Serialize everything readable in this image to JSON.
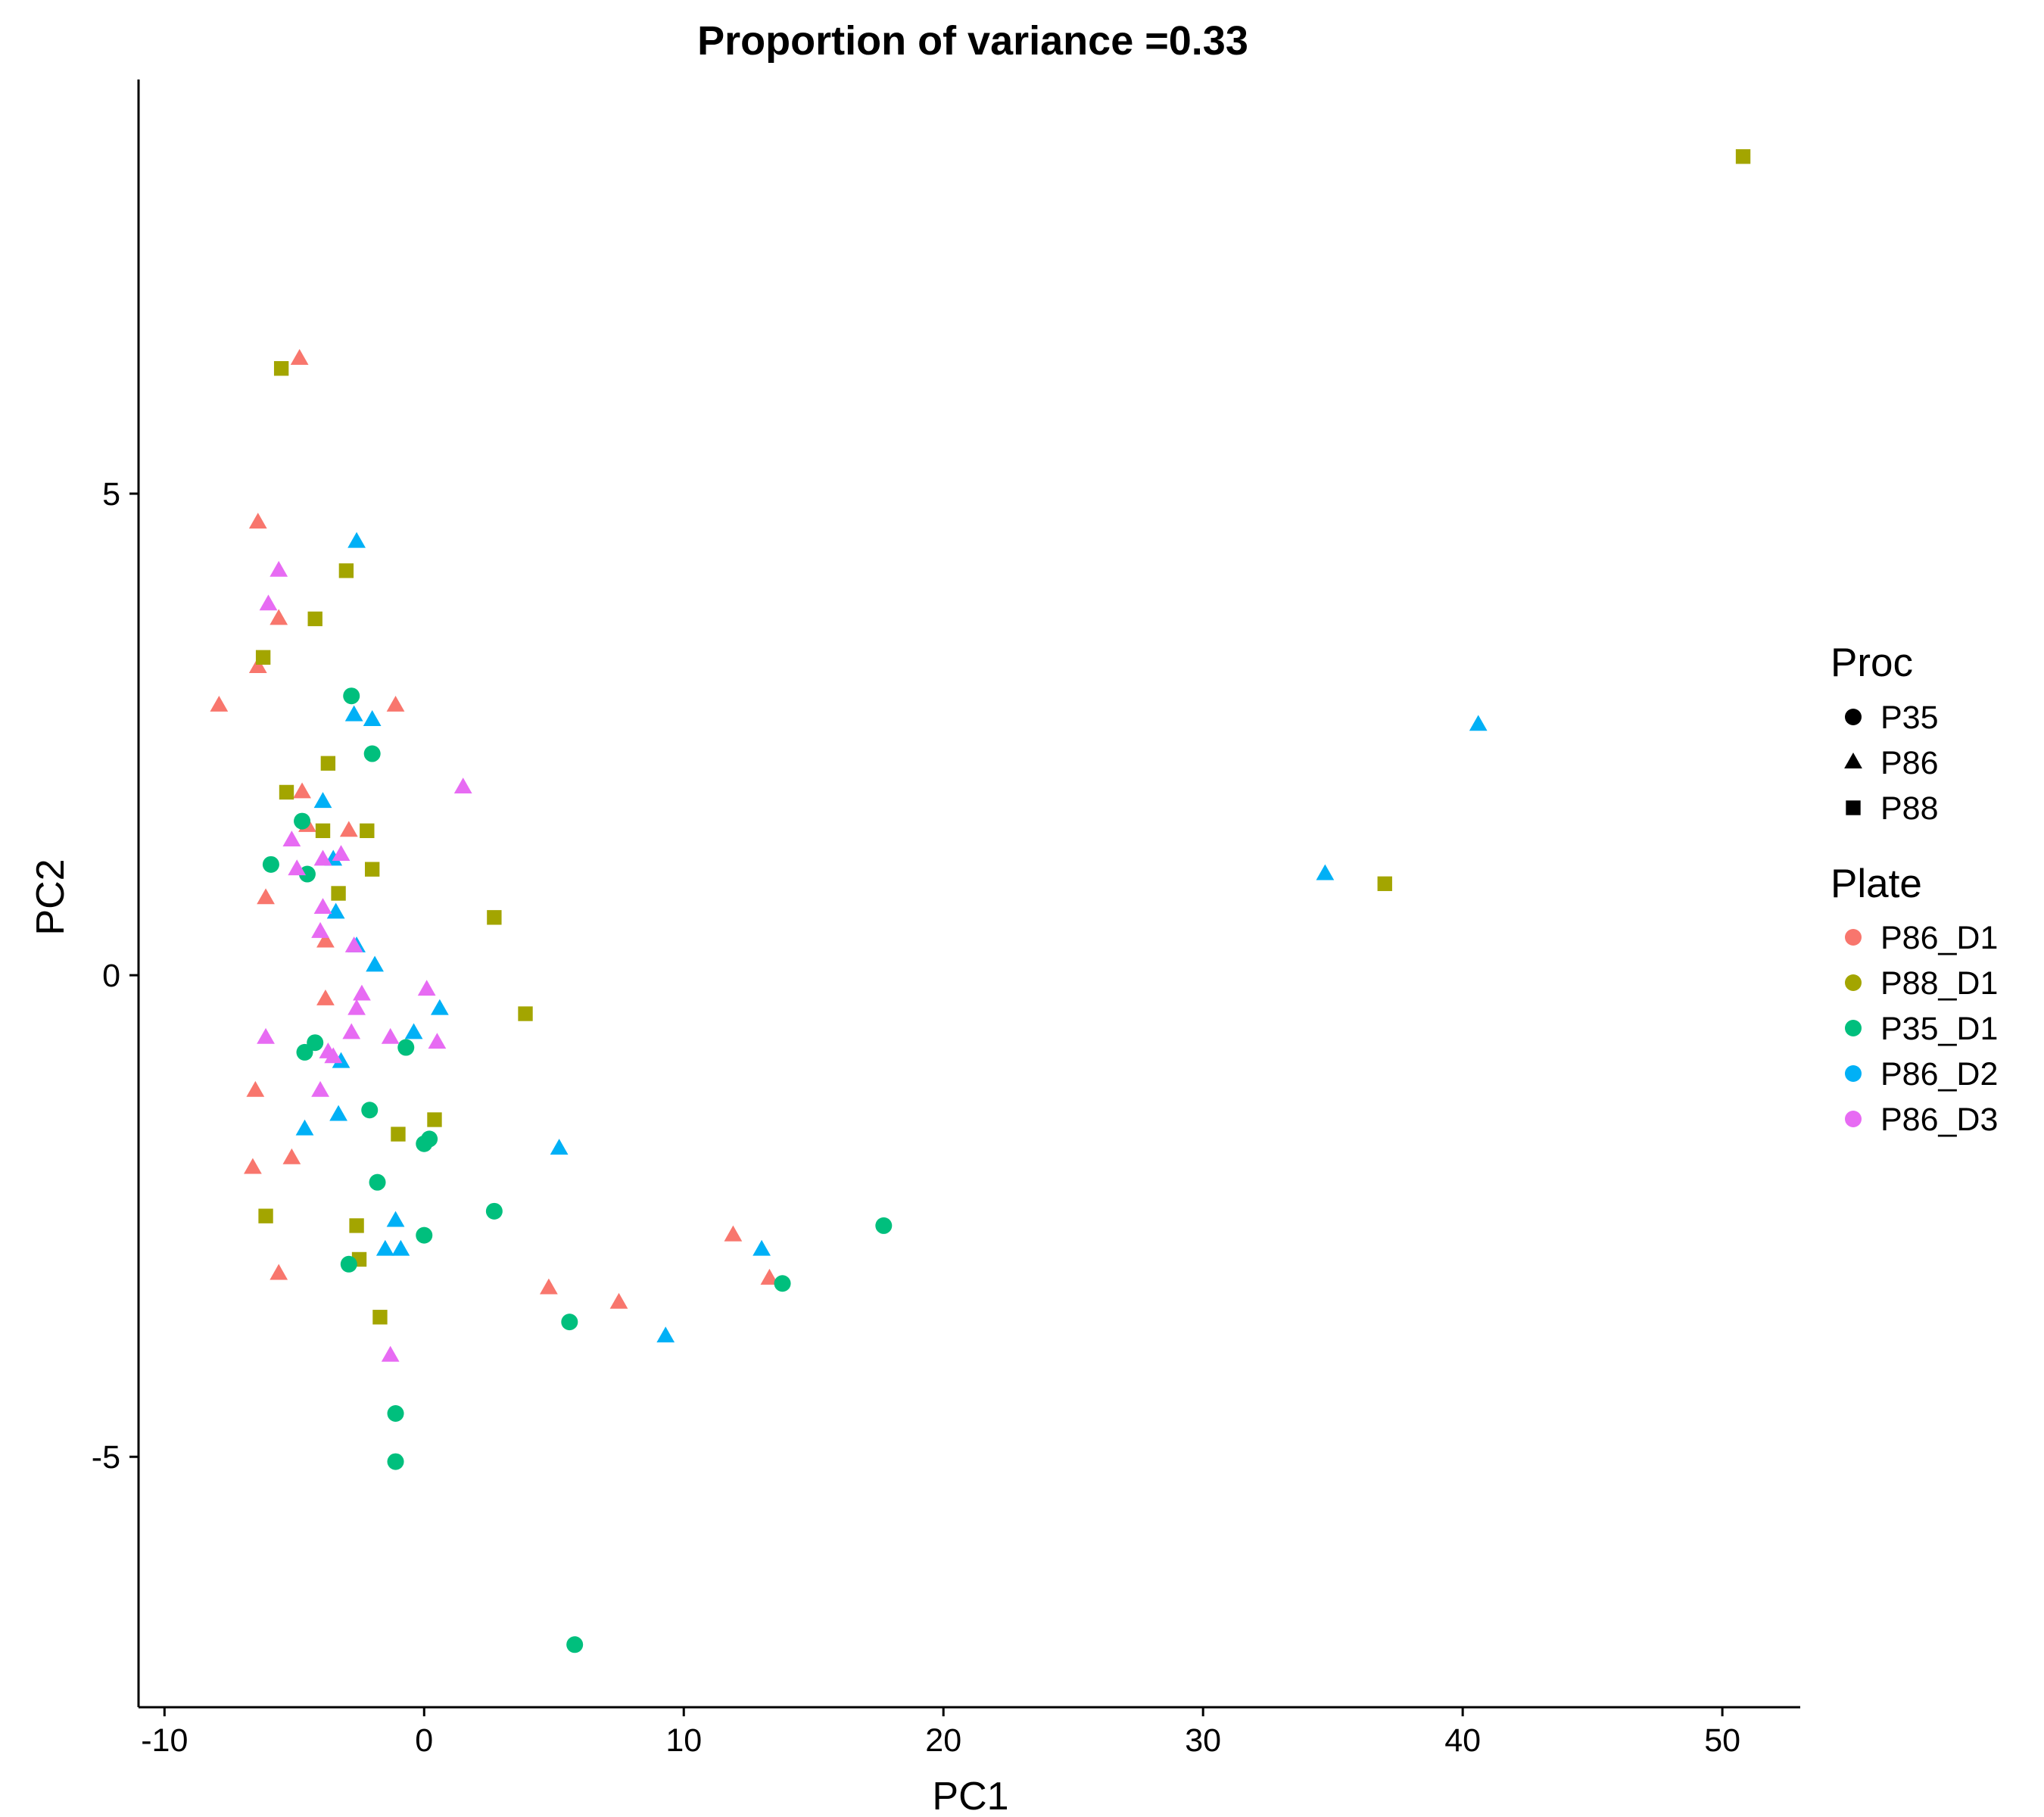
{
  "chart_data": {
    "type": "scatter",
    "title": "Proportion of variance =0.33",
    "xlabel": "PC1",
    "ylabel": "PC2",
    "xlim": [
      -11,
      53
    ],
    "ylim": [
      -7.6,
      9.3
    ],
    "x_ticks": [
      -10,
      0,
      10,
      20,
      30,
      40,
      50
    ],
    "y_ticks": [
      -5,
      0,
      5
    ],
    "x_tick_labels": [
      "-10",
      "0",
      "10",
      "20",
      "30",
      "40",
      "50"
    ],
    "y_tick_labels": [
      "-5",
      "0",
      "5"
    ],
    "grid": false,
    "legend_placement": "right",
    "legends": {
      "shape": {
        "title": "Proc",
        "entries": [
          {
            "label": "P35",
            "shape": "circle"
          },
          {
            "label": "P86",
            "shape": "triangle"
          },
          {
            "label": "P88",
            "shape": "square"
          }
        ]
      },
      "color": {
        "title": "Plate",
        "entries": [
          {
            "label": "P86_D1",
            "color": "#F8766D"
          },
          {
            "label": "P88_D1",
            "color": "#A3A500"
          },
          {
            "label": "P35_D1",
            "color": "#00BF7D"
          },
          {
            "label": "P86_D2",
            "color": "#00B0F6"
          },
          {
            "label": "P86_D3",
            "color": "#E76BF3"
          }
        ]
      }
    },
    "series": [
      {
        "name": "P86_D1",
        "shape": "triangle",
        "color": "#F8766D",
        "points": [
          [
            -4.8,
            6.4
          ],
          [
            -6.4,
            4.7
          ],
          [
            -5.6,
            3.7
          ],
          [
            -6.4,
            3.2
          ],
          [
            -7.9,
            2.8
          ],
          [
            -1.1,
            2.8
          ],
          [
            -4.7,
            1.9
          ],
          [
            -2.9,
            1.5
          ],
          [
            -4.5,
            1.55
          ],
          [
            -6.1,
            0.8
          ],
          [
            -3.8,
            0.35
          ],
          [
            -3.8,
            -0.25
          ],
          [
            -6.5,
            -1.2
          ],
          [
            -5.1,
            -1.9
          ],
          [
            -6.6,
            -2.0
          ],
          [
            -5.6,
            -3.1
          ],
          [
            4.8,
            -3.25
          ],
          [
            7.5,
            -3.4
          ],
          [
            11.9,
            -2.7
          ],
          [
            13.3,
            -3.15
          ]
        ]
      },
      {
        "name": "P88_D1",
        "shape": "square",
        "color": "#A3A500",
        "points": [
          [
            -5.5,
            6.3
          ],
          [
            -3.0,
            4.2
          ],
          [
            -4.2,
            3.7
          ],
          [
            -6.2,
            3.3
          ],
          [
            -3.7,
            2.2
          ],
          [
            -5.3,
            1.9
          ],
          [
            -3.9,
            1.5
          ],
          [
            -2.2,
            1.5
          ],
          [
            -2.0,
            1.1
          ],
          [
            -3.3,
            0.85
          ],
          [
            2.7,
            0.6
          ],
          [
            3.9,
            -0.4
          ],
          [
            0.4,
            -1.5
          ],
          [
            -1.0,
            -1.65
          ],
          [
            -6.1,
            -2.5
          ],
          [
            -2.6,
            -2.6
          ],
          [
            -2.5,
            -2.95
          ],
          [
            -1.7,
            -3.55
          ],
          [
            37.0,
            0.95
          ],
          [
            50.8,
            8.5
          ]
        ]
      },
      {
        "name": "P35_D1",
        "shape": "circle",
        "color": "#00BF7D",
        "points": [
          [
            -2.8,
            2.9
          ],
          [
            -2.0,
            2.3
          ],
          [
            -4.7,
            1.6
          ],
          [
            -5.9,
            1.15
          ],
          [
            -4.5,
            1.05
          ],
          [
            -4.2,
            -0.7
          ],
          [
            -4.6,
            -0.8
          ],
          [
            -0.7,
            -0.75
          ],
          [
            -2.1,
            -1.4
          ],
          [
            0.2,
            -1.7
          ],
          [
            0.0,
            -1.75
          ],
          [
            -1.8,
            -2.15
          ],
          [
            2.7,
            -2.45
          ],
          [
            0.0,
            -2.7
          ],
          [
            -2.9,
            -3.0
          ],
          [
            5.6,
            -3.6
          ],
          [
            13.8,
            -3.2
          ],
          [
            17.7,
            -2.6
          ],
          [
            -1.1,
            -4.55
          ],
          [
            -1.1,
            -5.05
          ],
          [
            5.8,
            -6.95
          ]
        ]
      },
      {
        "name": "P86_D2",
        "shape": "triangle",
        "color": "#00B0F6",
        "points": [
          [
            -2.6,
            4.5
          ],
          [
            -2.7,
            2.7
          ],
          [
            -2.0,
            2.65
          ],
          [
            -3.9,
            1.8
          ],
          [
            -3.5,
            1.2
          ],
          [
            -3.4,
            0.65
          ],
          [
            -2.6,
            0.3
          ],
          [
            -1.9,
            0.1
          ],
          [
            0.6,
            -0.35
          ],
          [
            -0.4,
            -0.6
          ],
          [
            -3.2,
            -0.9
          ],
          [
            -4.6,
            -1.6
          ],
          [
            -3.3,
            -1.45
          ],
          [
            5.2,
            -1.8
          ],
          [
            -1.1,
            -2.55
          ],
          [
            -1.5,
            -2.85
          ],
          [
            -0.9,
            -2.85
          ],
          [
            9.3,
            -3.75
          ],
          [
            13.0,
            -2.85
          ],
          [
            34.7,
            1.05
          ],
          [
            40.6,
            2.6
          ]
        ]
      },
      {
        "name": "P86_D3",
        "shape": "triangle",
        "color": "#E76BF3",
        "points": [
          [
            -5.6,
            4.2
          ],
          [
            -6.0,
            3.85
          ],
          [
            1.5,
            1.95
          ],
          [
            -5.1,
            1.4
          ],
          [
            -3.9,
            1.2
          ],
          [
            -3.2,
            1.25
          ],
          [
            -4.9,
            1.1
          ],
          [
            -3.9,
            0.7
          ],
          [
            -4.0,
            0.45
          ],
          [
            -2.7,
            0.3
          ],
          [
            0.1,
            -0.15
          ],
          [
            -2.4,
            -0.2
          ],
          [
            -2.6,
            -0.35
          ],
          [
            -6.1,
            -0.65
          ],
          [
            -2.8,
            -0.6
          ],
          [
            -1.3,
            -0.65
          ],
          [
            0.5,
            -0.7
          ],
          [
            -3.7,
            -0.8
          ],
          [
            -3.5,
            -0.85
          ],
          [
            -4.0,
            -1.2
          ],
          [
            -1.3,
            -3.95
          ]
        ]
      }
    ]
  }
}
